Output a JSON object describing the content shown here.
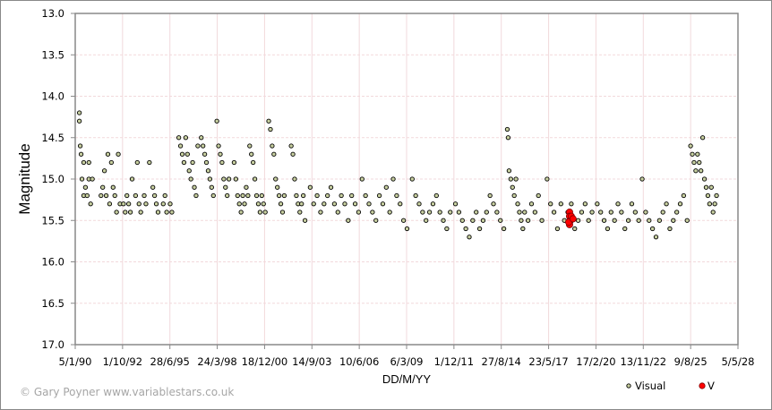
{
  "chart_data": {
    "type": "scatter",
    "title": "",
    "xlabel": "DD/M/YY",
    "ylabel": "Magnitude",
    "y_inverted": true,
    "ylim": [
      13.0,
      17.0
    ],
    "yticks": [
      "13.0",
      "13.5",
      "14.0",
      "14.5",
      "15.0",
      "15.5",
      "16.0",
      "16.5",
      "17.0"
    ],
    "xlim_year": [
      1990.01,
      2028.34
    ],
    "xticks": [
      "5/1/90",
      "1/10/92",
      "28/6/95",
      "24/3/98",
      "18/12/00",
      "14/9/03",
      "10/6/06",
      "6/3/09",
      "1/12/11",
      "27/8/14",
      "23/5/17",
      "17/2/20",
      "13/11/22",
      "9/8/25",
      "5/5/28"
    ],
    "grid": true,
    "legend_position": "bottom-right",
    "colors": {
      "visual_fill": "#c8d0a0",
      "visual_edge": "#000000",
      "v_fill": "#ff0000",
      "v_edge": "#800000",
      "grid": "#f2d9dc",
      "axis": "#888888"
    },
    "series": [
      {
        "name": "Visual",
        "marker": "small-circle",
        "points": [
          [
            1990.25,
            14.2
          ],
          [
            1990.25,
            14.3
          ],
          [
            1990.3,
            14.6
          ],
          [
            1990.35,
            14.7
          ],
          [
            1990.4,
            15.0
          ],
          [
            1990.5,
            15.2
          ],
          [
            1990.6,
            15.1
          ],
          [
            1990.7,
            15.2
          ],
          [
            1990.8,
            15.0
          ],
          [
            1990.9,
            15.3
          ],
          [
            1991.0,
            15.0
          ],
          [
            1990.5,
            14.8
          ],
          [
            1990.8,
            14.8
          ],
          [
            1991.5,
            15.2
          ],
          [
            1991.6,
            15.1
          ],
          [
            1991.7,
            14.9
          ],
          [
            1991.8,
            15.2
          ],
          [
            1991.9,
            14.7
          ],
          [
            1992.0,
            15.3
          ],
          [
            1992.1,
            14.8
          ],
          [
            1992.2,
            15.1
          ],
          [
            1992.3,
            15.2
          ],
          [
            1992.4,
            15.4
          ],
          [
            1992.5,
            14.7
          ],
          [
            1992.6,
            15.3
          ],
          [
            1992.8,
            15.3
          ],
          [
            1992.9,
            15.4
          ],
          [
            1993.0,
            15.2
          ],
          [
            1993.1,
            15.3
          ],
          [
            1993.2,
            15.4
          ],
          [
            1993.3,
            15.0
          ],
          [
            1993.5,
            15.2
          ],
          [
            1993.6,
            14.8
          ],
          [
            1993.7,
            15.3
          ],
          [
            1993.8,
            15.4
          ],
          [
            1994.0,
            15.2
          ],
          [
            1994.1,
            15.3
          ],
          [
            1994.3,
            14.8
          ],
          [
            1994.5,
            15.1
          ],
          [
            1994.6,
            15.2
          ],
          [
            1994.7,
            15.3
          ],
          [
            1994.8,
            15.4
          ],
          [
            1995.1,
            15.3
          ],
          [
            1995.2,
            15.2
          ],
          [
            1995.3,
            15.4
          ],
          [
            1995.5,
            15.3
          ],
          [
            1995.6,
            15.4
          ],
          [
            1996.0,
            14.5
          ],
          [
            1996.1,
            14.6
          ],
          [
            1996.2,
            14.7
          ],
          [
            1996.3,
            14.8
          ],
          [
            1996.4,
            14.5
          ],
          [
            1996.5,
            14.7
          ],
          [
            1996.6,
            14.9
          ],
          [
            1996.7,
            15.0
          ],
          [
            1996.8,
            14.8
          ],
          [
            1996.9,
            15.1
          ],
          [
            1997.0,
            15.2
          ],
          [
            1997.1,
            14.6
          ],
          [
            1997.3,
            14.5
          ],
          [
            1997.4,
            14.6
          ],
          [
            1997.5,
            14.7
          ],
          [
            1997.6,
            14.8
          ],
          [
            1997.7,
            14.9
          ],
          [
            1997.8,
            15.0
          ],
          [
            1997.9,
            15.1
          ],
          [
            1998.0,
            15.2
          ],
          [
            1998.2,
            14.3
          ],
          [
            1998.3,
            14.6
          ],
          [
            1998.4,
            14.7
          ],
          [
            1998.5,
            14.8
          ],
          [
            1998.6,
            15.0
          ],
          [
            1998.7,
            15.1
          ],
          [
            1998.8,
            15.2
          ],
          [
            1998.9,
            15.0
          ],
          [
            1999.2,
            14.8
          ],
          [
            1999.3,
            15.0
          ],
          [
            1999.4,
            15.2
          ],
          [
            1999.5,
            15.3
          ],
          [
            1999.6,
            15.4
          ],
          [
            1999.7,
            15.2
          ],
          [
            1999.8,
            15.3
          ],
          [
            1999.9,
            15.1
          ],
          [
            2000.0,
            15.2
          ],
          [
            2000.1,
            14.6
          ],
          [
            2000.2,
            14.7
          ],
          [
            2000.3,
            14.8
          ],
          [
            2000.4,
            15.0
          ],
          [
            2000.5,
            15.2
          ],
          [
            2000.6,
            15.3
          ],
          [
            2000.7,
            15.4
          ],
          [
            2000.8,
            15.2
          ],
          [
            2000.9,
            15.3
          ],
          [
            2001.0,
            15.4
          ],
          [
            2001.2,
            14.3
          ],
          [
            2001.3,
            14.4
          ],
          [
            2001.4,
            14.6
          ],
          [
            2001.5,
            14.7
          ],
          [
            2001.6,
            15.0
          ],
          [
            2001.7,
            15.1
          ],
          [
            2001.8,
            15.2
          ],
          [
            2001.9,
            15.3
          ],
          [
            2002.0,
            15.4
          ],
          [
            2002.1,
            15.2
          ],
          [
            2002.5,
            14.6
          ],
          [
            2002.6,
            14.7
          ],
          [
            2002.7,
            15.0
          ],
          [
            2002.8,
            15.2
          ],
          [
            2002.9,
            15.3
          ],
          [
            2003.0,
            15.4
          ],
          [
            2003.1,
            15.3
          ],
          [
            2003.2,
            15.2
          ],
          [
            2003.3,
            15.5
          ],
          [
            2003.6,
            15.1
          ],
          [
            2003.8,
            15.3
          ],
          [
            2004.0,
            15.2
          ],
          [
            2004.2,
            15.4
          ],
          [
            2004.4,
            15.3
          ],
          [
            2004.6,
            15.2
          ],
          [
            2004.8,
            15.1
          ],
          [
            2005.0,
            15.3
          ],
          [
            2005.2,
            15.4
          ],
          [
            2005.4,
            15.2
          ],
          [
            2005.6,
            15.3
          ],
          [
            2005.8,
            15.5
          ],
          [
            2006.0,
            15.2
          ],
          [
            2006.2,
            15.3
          ],
          [
            2006.4,
            15.4
          ],
          [
            2006.6,
            15.0
          ],
          [
            2006.8,
            15.2
          ],
          [
            2007.0,
            15.3
          ],
          [
            2007.2,
            15.4
          ],
          [
            2007.4,
            15.5
          ],
          [
            2007.6,
            15.2
          ],
          [
            2007.8,
            15.3
          ],
          [
            2008.0,
            15.1
          ],
          [
            2008.2,
            15.4
          ],
          [
            2008.4,
            15.0
          ],
          [
            2008.6,
            15.2
          ],
          [
            2008.8,
            15.3
          ],
          [
            2009.0,
            15.5
          ],
          [
            2009.2,
            15.6
          ],
          [
            2009.5,
            15.0
          ],
          [
            2009.7,
            15.2
          ],
          [
            2009.9,
            15.3
          ],
          [
            2010.1,
            15.4
          ],
          [
            2010.3,
            15.5
          ],
          [
            2010.5,
            15.4
          ],
          [
            2010.7,
            15.3
          ],
          [
            2010.9,
            15.2
          ],
          [
            2011.1,
            15.4
          ],
          [
            2011.3,
            15.5
          ],
          [
            2011.5,
            15.6
          ],
          [
            2011.7,
            15.4
          ],
          [
            2012.0,
            15.3
          ],
          [
            2012.2,
            15.4
          ],
          [
            2012.4,
            15.5
          ],
          [
            2012.6,
            15.6
          ],
          [
            2012.8,
            15.7
          ],
          [
            2013.0,
            15.5
          ],
          [
            2013.2,
            15.4
          ],
          [
            2013.4,
            15.6
          ],
          [
            2013.6,
            15.5
          ],
          [
            2013.8,
            15.4
          ],
          [
            2014.0,
            15.2
          ],
          [
            2014.2,
            15.3
          ],
          [
            2014.4,
            15.4
          ],
          [
            2014.6,
            15.5
          ],
          [
            2014.8,
            15.6
          ],
          [
            2015.0,
            14.4
          ],
          [
            2015.05,
            14.5
          ],
          [
            2015.1,
            14.9
          ],
          [
            2015.2,
            15.0
          ],
          [
            2015.3,
            15.1
          ],
          [
            2015.4,
            15.2
          ],
          [
            2015.5,
            15.0
          ],
          [
            2015.6,
            15.3
          ],
          [
            2015.7,
            15.4
          ],
          [
            2015.8,
            15.5
          ],
          [
            2015.9,
            15.6
          ],
          [
            2016.0,
            15.4
          ],
          [
            2016.2,
            15.5
          ],
          [
            2016.4,
            15.3
          ],
          [
            2016.6,
            15.4
          ],
          [
            2016.8,
            15.2
          ],
          [
            2017.0,
            15.5
          ],
          [
            2017.3,
            15.0
          ],
          [
            2017.5,
            15.3
          ],
          [
            2017.7,
            15.4
          ],
          [
            2017.9,
            15.6
          ],
          [
            2018.1,
            15.3
          ],
          [
            2018.3,
            15.5
          ],
          [
            2018.5,
            15.4
          ],
          [
            2018.7,
            15.3
          ],
          [
            2018.9,
            15.6
          ],
          [
            2019.1,
            15.5
          ],
          [
            2019.3,
            15.4
          ],
          [
            2019.5,
            15.3
          ],
          [
            2019.7,
            15.5
          ],
          [
            2019.9,
            15.4
          ],
          [
            2020.2,
            15.3
          ],
          [
            2020.4,
            15.4
          ],
          [
            2020.6,
            15.5
          ],
          [
            2020.8,
            15.6
          ],
          [
            2021.0,
            15.4
          ],
          [
            2021.2,
            15.5
          ],
          [
            2021.4,
            15.3
          ],
          [
            2021.6,
            15.4
          ],
          [
            2021.8,
            15.6
          ],
          [
            2022.0,
            15.5
          ],
          [
            2022.2,
            15.3
          ],
          [
            2022.4,
            15.4
          ],
          [
            2022.6,
            15.5
          ],
          [
            2022.8,
            15.0
          ],
          [
            2023.0,
            15.4
          ],
          [
            2023.2,
            15.5
          ],
          [
            2023.4,
            15.6
          ],
          [
            2023.6,
            15.7
          ],
          [
            2023.8,
            15.5
          ],
          [
            2024.0,
            15.4
          ],
          [
            2024.2,
            15.3
          ],
          [
            2024.4,
            15.6
          ],
          [
            2024.6,
            15.5
          ],
          [
            2024.8,
            15.4
          ],
          [
            2025.0,
            15.3
          ],
          [
            2025.2,
            15.2
          ],
          [
            2025.4,
            15.5
          ],
          [
            2025.6,
            14.6
          ],
          [
            2025.7,
            14.7
          ],
          [
            2025.8,
            14.8
          ],
          [
            2025.9,
            14.9
          ],
          [
            2026.0,
            14.7
          ],
          [
            2026.1,
            14.8
          ],
          [
            2026.2,
            14.9
          ],
          [
            2026.3,
            14.5
          ],
          [
            2026.4,
            15.0
          ],
          [
            2026.5,
            15.1
          ],
          [
            2026.6,
            15.2
          ],
          [
            2026.7,
            15.3
          ],
          [
            2026.8,
            15.1
          ],
          [
            2026.9,
            15.4
          ],
          [
            2027.0,
            15.3
          ],
          [
            2027.1,
            15.2
          ]
        ]
      },
      {
        "name": "V",
        "marker": "circle",
        "points": [
          [
            2018.6,
            15.4
          ],
          [
            2018.6,
            15.45
          ],
          [
            2018.65,
            15.5
          ],
          [
            2018.7,
            15.45
          ],
          [
            2018.6,
            15.55
          ],
          [
            2018.55,
            15.52
          ],
          [
            2018.8,
            15.48
          ]
        ]
      }
    ]
  },
  "copyright": "© Gary Poyner  www.variablestars.co.uk",
  "legend": {
    "items": [
      {
        "label": "Visual"
      },
      {
        "label": "V"
      }
    ]
  }
}
